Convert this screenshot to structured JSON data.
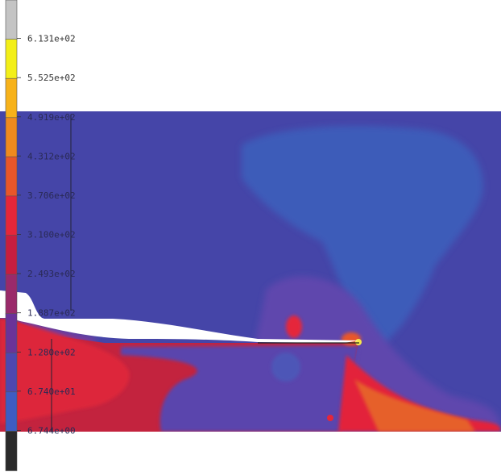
{
  "legend": {
    "labels": [
      "6.131e+02",
      "5.525e+02",
      "4.919e+02",
      "4.312e+02",
      "3.706e+02",
      "3.100e+02",
      "2.493e+02",
      "1.887e+02",
      "1.280e+02",
      "6.740e+01",
      "6.744e+00"
    ],
    "colors": [
      "#c4c4c4",
      "#f3ef18",
      "#f7b21a",
      "#ef8a1e",
      "#e8562a",
      "#e5263a",
      "#c71e3f",
      "#9a2a6a",
      "#6a3399",
      "#4d47b0",
      "#3e5cc2",
      "#2a2a2a"
    ]
  },
  "palette": {
    "background_blue": "#4444a6",
    "light_blue": "#3d5cb9",
    "purple": "#5b44ac",
    "magenta": "#8c3490",
    "red": "#e0243c",
    "orange": "#f08a24",
    "yellow": "#f7e84a"
  }
}
